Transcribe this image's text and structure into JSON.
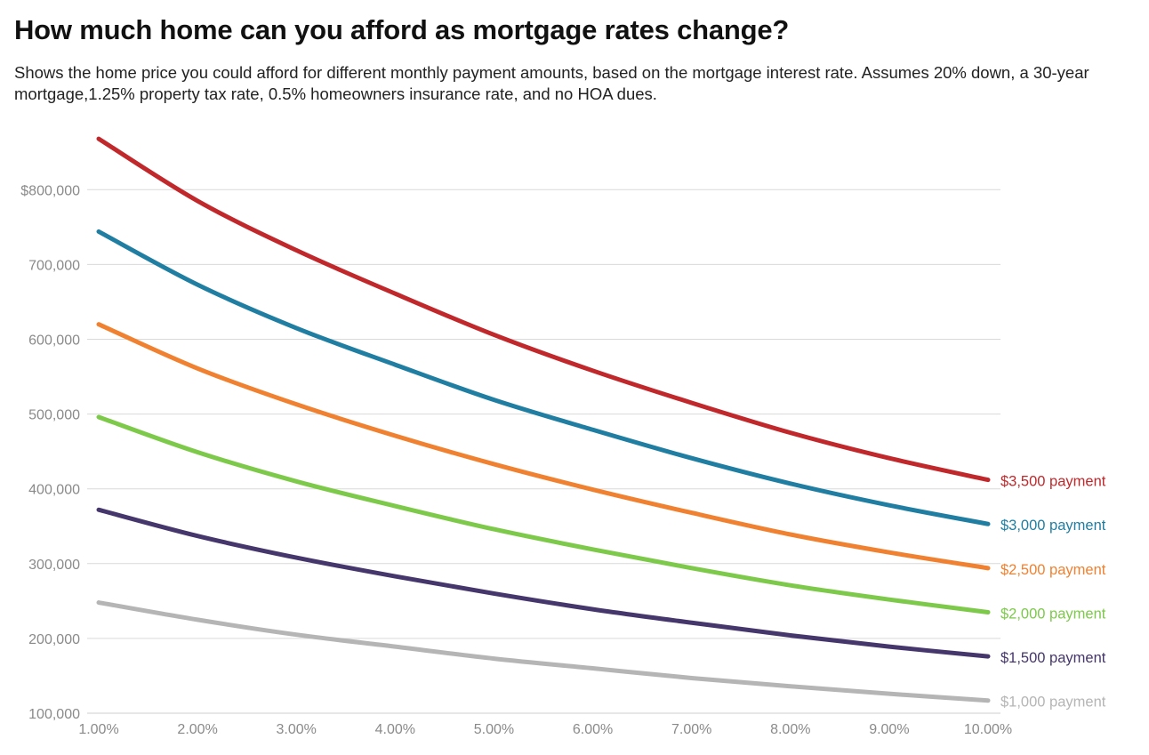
{
  "title": "How much home can you afford as mortgage rates change?",
  "subtitle": "Shows the home price you could afford for different monthly payment amounts, based on the mortgage interest rate. Assumes 20% down, a 30-year mortgage,1.25% property tax rate, 0.5% homeowners insurance rate, and no HOA dues.",
  "chart_data": {
    "type": "line",
    "title": "How much home can you afford as mortgage rates change?",
    "subtitle": "Shows the home price you could afford for different monthly payment amounts, based on the mortgage interest rate. Assumes 20% down, a 30-year mortgage,1.25% property tax rate, 0.5% homeowners insurance rate, and no HOA dues.",
    "xlabel": "",
    "ylabel": "",
    "x": [
      1,
      2,
      3,
      4,
      5,
      6,
      7,
      8,
      9,
      10
    ],
    "xlim": [
      1,
      10
    ],
    "ylim": [
      100000,
      900000
    ],
    "x_ticks": [
      1,
      2,
      3,
      4,
      5,
      6,
      7,
      8,
      9,
      10
    ],
    "x_tick_labels": [
      "1.00%",
      "2.00%",
      "3.00%",
      "4.00%",
      "5.00%",
      "6.00%",
      "7.00%",
      "8.00%",
      "9.00%",
      "10.00%"
    ],
    "y_ticks": [
      100000,
      200000,
      300000,
      400000,
      500000,
      600000,
      700000,
      800000
    ],
    "y_tick_labels": [
      "100,000",
      "200,000",
      "300,000",
      "400,000",
      "500,000",
      "600,000",
      "700,000",
      "$800,000"
    ],
    "grid": true,
    "legend": "direct labels at right end of lines",
    "series": [
      {
        "name": "$3,500 payment",
        "color": "#c0282b",
        "values": [
          868000,
          785000,
          719000,
          661000,
          606000,
          558000,
          515000,
          475000,
          441000,
          412000
        ]
      },
      {
        "name": "$3,000 payment",
        "color": "#1f7ea1",
        "values": [
          744000,
          673000,
          615000,
          566000,
          519000,
          479000,
          441000,
          407000,
          378000,
          353000
        ]
      },
      {
        "name": "$2,500 payment",
        "color": "#f08130",
        "values": [
          620000,
          561000,
          513000,
          471000,
          433000,
          399000,
          368000,
          339000,
          315000,
          294000
        ]
      },
      {
        "name": "$2,000 payment",
        "color": "#7dc94a",
        "values": [
          496000,
          449000,
          410000,
          377000,
          346000,
          319000,
          294000,
          271000,
          252000,
          235000
        ]
      },
      {
        "name": "$1,500 payment",
        "color": "#45366b",
        "values": [
          372000,
          337000,
          308000,
          283000,
          260000,
          239000,
          221000,
          204000,
          189000,
          176000
        ]
      },
      {
        "name": "$1,000 payment",
        "color": "#b5b5b5",
        "values": [
          248000,
          225000,
          205000,
          189000,
          173000,
          160000,
          147000,
          136000,
          126000,
          117000
        ]
      }
    ]
  }
}
